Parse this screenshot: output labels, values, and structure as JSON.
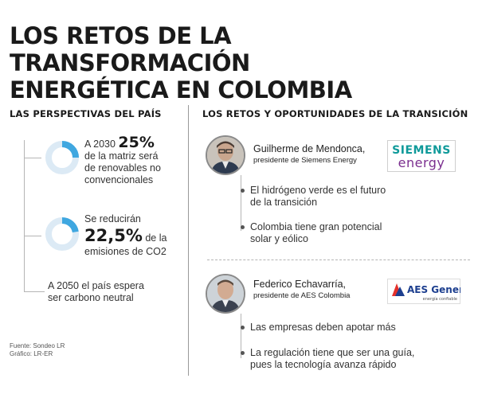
{
  "title": {
    "line1": "LOS RETOS DE LA TRANSFORMACIÓN",
    "line2": "ENERGÉTICA EN COLOMBIA"
  },
  "left": {
    "heading": "LAS PERSPECTIVAS DEL PAÍS",
    "stat1": {
      "prefix": "A 2030",
      "value": "25%",
      "line2": "de la matriz será",
      "line3": "de renovables no",
      "line4": "convencionales",
      "fraction": 0.25
    },
    "stat2": {
      "line1": "Se reducirán",
      "value": "22,5%",
      "suffix": " de la",
      "line3": "emisiones de CO2",
      "fraction": 0.225
    },
    "stat3": {
      "line1": "A 2050 el país espera",
      "line2": "ser carbono neutral"
    },
    "source": {
      "line1": "Fuente: Sondeo LR",
      "line2": "Gráfico: LR-ER"
    }
  },
  "right": {
    "heading": "LOS RETOS Y OPORTUNIDADES DE LA TRANSICIÓN",
    "person1": {
      "name": "Guilherme de Mendonca,",
      "role": "presidente de Siemens Energy",
      "bullets": [
        {
          "line1": "El hidrógeno verde es el futuro",
          "line2": "de la transición"
        },
        {
          "line1": "Colombia tiene gran potencial",
          "line2": "solar y eólico"
        }
      ]
    },
    "person2": {
      "name": "Federico Echavarría,",
      "role": "presidente de AES Colombia",
      "bullets": [
        {
          "line1": "Las empresas deben apotar más",
          "line2": ""
        },
        {
          "line1": "La regulación tiene que ser una guía,",
          "line2": "pues la tecnología avanza rápido"
        }
      ]
    }
  },
  "logos": {
    "siemens_top": "SIEMENS",
    "siemens_bottom": "energy",
    "aes_main": "AES Gener",
    "aes_tagline": "energía confiable"
  },
  "colors": {
    "donut_fill": "#3fa7e0",
    "donut_track": "#dceaf5",
    "siemens_teal": "#0f9a9a",
    "siemens_purple": "#7b2f8f",
    "aes_blue": "#1d3f8f"
  }
}
